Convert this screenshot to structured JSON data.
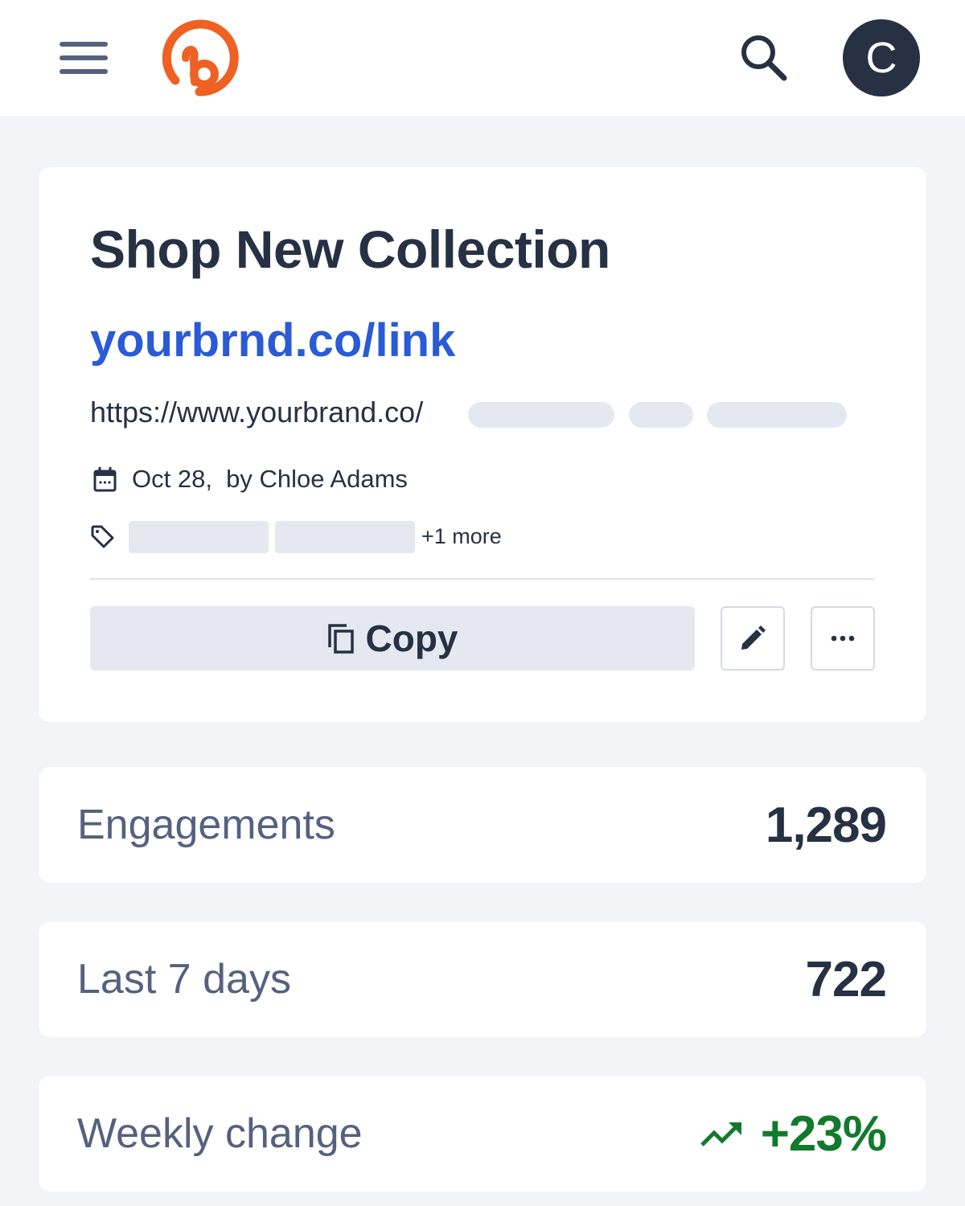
{
  "header": {
    "menu_icon": "hamburger-icon",
    "logo": "bitly-logo",
    "search_icon": "search-icon",
    "avatar_initial": "C"
  },
  "link": {
    "title": "Shop New Collection",
    "short_url": "yourbrnd.co/link",
    "long_url": "https://www.yourbrand.co/",
    "date": "Oct 28,",
    "author": "by Chloe Adams",
    "tags_more": "+1 more",
    "copy_label": "Copy"
  },
  "stats": [
    {
      "label": "Engagements",
      "value": "1,289"
    },
    {
      "label": "Last 7 days",
      "value": "722"
    },
    {
      "label": "Weekly change",
      "value": "+23%",
      "trend": "up"
    }
  ],
  "colors": {
    "brand": "#ee6123",
    "link": "#2a5bd7",
    "positive": "#127a2c"
  }
}
